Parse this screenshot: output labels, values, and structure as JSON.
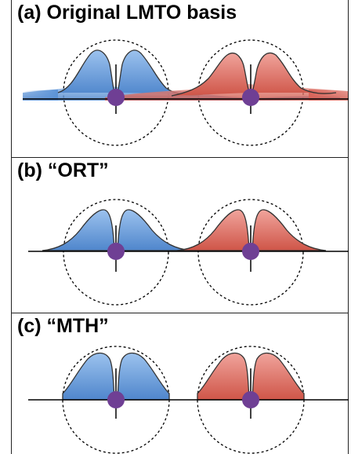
{
  "panels": [
    {
      "id": "a",
      "title": "(a) Original LMTO basis",
      "variant": "original"
    },
    {
      "id": "b",
      "title": "(b) “ORT”",
      "variant": "ort"
    },
    {
      "id": "c",
      "title": "(c) “MTH”",
      "variant": "mth"
    }
  ],
  "colors": {
    "blue_fill": "#5b93d6",
    "blue_light": "#9cc2ee",
    "red_fill": "#d9645a",
    "red_light": "#f0a49c",
    "site": "#6f3f94",
    "line": "#000000"
  }
}
